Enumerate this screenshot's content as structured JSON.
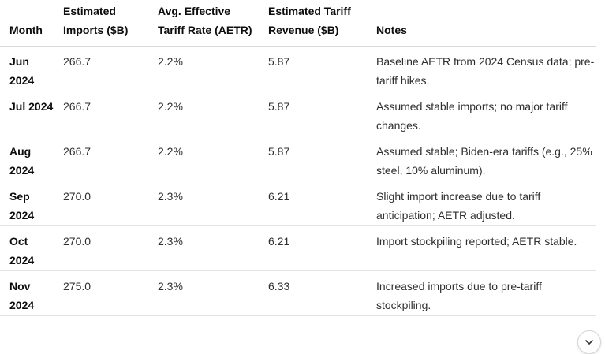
{
  "table": {
    "headers": [
      "Month",
      "Estimated Imports ($B)",
      "Avg. Effective Tariff Rate (AETR)",
      "Estimated Tariff Revenue ($B)",
      "Notes"
    ],
    "rows": [
      {
        "month": "Jun 2024",
        "imports": "266.7",
        "aetr": "2.2%",
        "revenue": "5.87",
        "notes": "Baseline AETR from 2024 Census data; pre-tariff hikes."
      },
      {
        "month": "Jul 2024",
        "imports": "266.7",
        "aetr": "2.2%",
        "revenue": "5.87",
        "notes": "Assumed stable imports; no major tariff changes."
      },
      {
        "month": "Aug 2024",
        "imports": "266.7",
        "aetr": "2.2%",
        "revenue": "5.87",
        "notes": "Assumed stable; Biden-era tariffs (e.g., 25% steel, 10% aluminum)."
      },
      {
        "month": "Sep 2024",
        "imports": "270.0",
        "aetr": "2.3%",
        "revenue": "6.21",
        "notes": "Slight import increase due to tariff anticipation; AETR adjusted."
      },
      {
        "month": "Oct 2024",
        "imports": "270.0",
        "aetr": "2.3%",
        "revenue": "6.21",
        "notes": "Import stockpiling reported; AETR stable."
      },
      {
        "month": "Nov 2024",
        "imports": "275.0",
        "aetr": "2.3%",
        "revenue": "6.33",
        "notes": "Increased imports due to pre-tariff stockpiling."
      }
    ]
  },
  "scroll_button": {
    "icon": "chevron-down-icon"
  }
}
